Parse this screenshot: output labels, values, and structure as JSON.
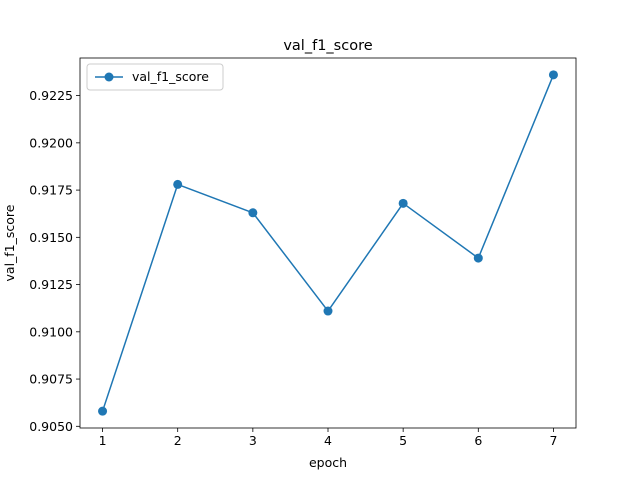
{
  "chart_data": {
    "type": "line",
    "title": "val_f1_score",
    "xlabel": "epoch",
    "ylabel": "val_f1_score",
    "x": [
      1,
      2,
      3,
      4,
      5,
      6,
      7
    ],
    "series": [
      {
        "name": "val_f1_score",
        "values": [
          0.9058,
          0.9178,
          0.9163,
          0.9111,
          0.9168,
          0.9139,
          0.9236
        ],
        "color": "#1f77b4",
        "marker": "circle"
      }
    ],
    "xlim": [
      0.7,
      7.3
    ],
    "ylim": [
      0.90491,
      0.92449
    ],
    "xticks": [
      1,
      2,
      3,
      4,
      5,
      6,
      7
    ],
    "xtick_labels": [
      "1",
      "2",
      "3",
      "4",
      "5",
      "6",
      "7"
    ],
    "yticks": [
      0.905,
      0.9075,
      0.91,
      0.9125,
      0.915,
      0.9175,
      0.92,
      0.9225
    ],
    "ytick_labels": [
      "0.9050",
      "0.9075",
      "0.9100",
      "0.9125",
      "0.9150",
      "0.9175",
      "0.9200",
      "0.9225"
    ],
    "grid": false,
    "legend_position": "upper left"
  }
}
